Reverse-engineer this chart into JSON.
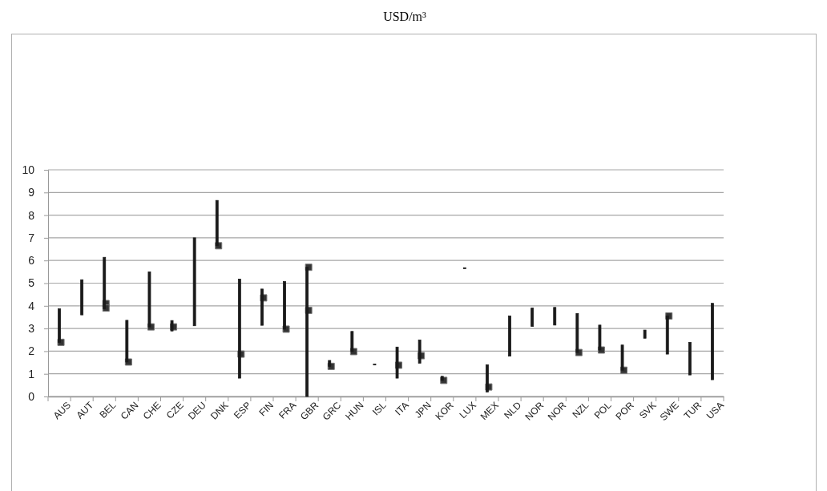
{
  "chart_data": {
    "type": "bar",
    "title": "USD/m³",
    "categories": [
      "AUS",
      "AUT",
      "BEL",
      "CAN",
      "CHE",
      "CZE",
      "DEU",
      "DNK",
      "ESP",
      "FIN",
      "FRA",
      "GBR",
      "GRC",
      "HUN",
      "ISL",
      "ITA",
      "JPN",
      "KOR",
      "LUX",
      "MEX",
      "NLD",
      "NOR",
      "NOR",
      "NZL",
      "POL",
      "POR",
      "SVK",
      "SWE",
      "TUR",
      "USA"
    ],
    "ylim": [
      0,
      10
    ],
    "yticks": [
      0,
      1,
      2,
      3,
      4,
      5,
      6,
      7,
      8,
      9,
      10
    ],
    "grid": "y",
    "marker": "square",
    "series": [
      {
        "color": "#1a1a1a",
        "base": [
          2.39,
          3.6,
          3.87,
          1.52,
          3.07,
          2.89,
          3.12,
          6.65,
          0.81,
          3.14,
          2.97,
          0,
          1.33,
          1.98,
          1.39,
          0.81,
          1.47,
          0.71,
          5.64,
          0.2,
          1.78,
          3.09,
          3.15,
          1.94,
          2.05,
          1.16,
          2.57,
          1.87,
          0.95,
          0.74
        ],
        "values": [
          1.48,
          1.55,
          2.27,
          1.84,
          2.43,
          0.46,
          3.88,
          2.0,
          4.37,
          1.6,
          2.1,
          5.7,
          0.26,
          0.89,
          0.04,
          1.37,
          1.02,
          0.18,
          0.04,
          1.2,
          1.77,
          0.81,
          0.78,
          1.72,
          1.1,
          1.11,
          0.36,
          1.68,
          1.44,
          3.37
        ]
      },
      {
        "type": "scatter",
        "color": "#333333",
        "values": [
          2.39,
          null,
          4.1,
          1.52,
          3.07,
          3.07,
          null,
          6.65,
          1.87,
          4.35,
          2.97,
          5.7,
          1.33,
          1.98,
          null,
          1.38,
          1.8,
          0.71,
          null,
          0.42,
          null,
          null,
          null,
          1.94,
          2.05,
          1.16,
          null,
          3.55,
          null,
          null
        ]
      },
      {
        "type": "scatter",
        "color": "#333333",
        "values": [
          null,
          null,
          3.9,
          null,
          null,
          null,
          null,
          null,
          null,
          null,
          null,
          3.8,
          null,
          null,
          null,
          null,
          null,
          null,
          null,
          null,
          null,
          null,
          null,
          null,
          null,
          null,
          null,
          null,
          null,
          null
        ]
      }
    ]
  }
}
